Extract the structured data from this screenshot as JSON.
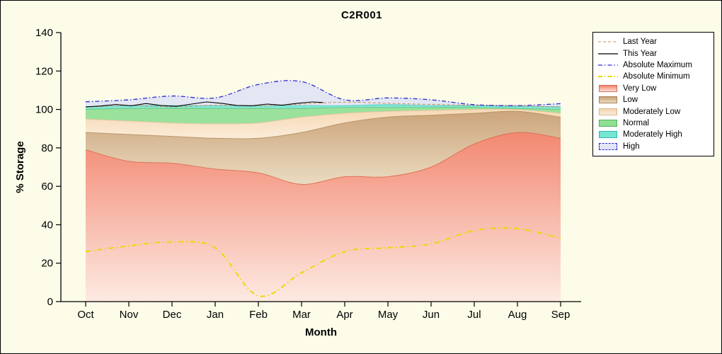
{
  "title": "C2R001",
  "axes": {
    "x_label": "Month",
    "y_label": "% Storage",
    "y_ticks": [
      0,
      20,
      40,
      60,
      80,
      100,
      120,
      140
    ],
    "x_ticks": [
      "Oct",
      "Nov",
      "Dec",
      "Jan",
      "Feb",
      "Mar",
      "Apr",
      "May",
      "Jun",
      "Jul",
      "Aug",
      "Sep"
    ]
  },
  "legend": {
    "items": [
      {
        "label": "Last Year",
        "swatch": "line",
        "color": "#CF8B55",
        "dash": "4 3",
        "width": 1
      },
      {
        "label": "This Year",
        "swatch": "line",
        "color": "#000000",
        "dash": "",
        "width": 1.2
      },
      {
        "label": "Absolute Maximum",
        "swatch": "line",
        "color": "#2B2BD5",
        "dash": "6 3 1.5 3",
        "width": 1.3
      },
      {
        "label": "Absolute Minimum",
        "swatch": "line",
        "color": "#EDD800",
        "dash": "6 3 1.5 3",
        "width": 2
      },
      {
        "label": "Very Low",
        "swatch": "area",
        "fill_top": "#F2826B",
        "fill_bottom": "#FCE3DA",
        "border": "#D96B52"
      },
      {
        "label": "Low",
        "swatch": "area",
        "fill_top": "#C9A075",
        "fill_bottom": "#EADABF",
        "border": "#A8825A"
      },
      {
        "label": "Moderately Low",
        "swatch": "area",
        "fill_top": "#F6D6B2",
        "fill_bottom": "#FBEBD8",
        "border": "#D9B98F"
      },
      {
        "label": "Normal",
        "swatch": "area",
        "fill_top": "#8FDF92",
        "fill_bottom": "#8FDF92",
        "border": "#4FAE5C"
      },
      {
        "label": "Moderately High",
        "swatch": "area",
        "fill_top": "#74E6D2",
        "fill_bottom": "#74E6D2",
        "border": "#2FB9AC"
      },
      {
        "label": "High",
        "swatch": "area",
        "fill_top": "#E2E5F6",
        "fill_bottom": "#E2E5F6",
        "border": "#2B2BD5",
        "border_dash": true
      }
    ]
  },
  "chart_data": {
    "type": "area",
    "title": "C2R001",
    "xlabel": "Month",
    "ylabel": "% Storage",
    "ylim": [
      0,
      140
    ],
    "legend_position": "right",
    "background": "#FCFCE8",
    "categories": [
      "Oct",
      "Nov",
      "Dec",
      "Jan",
      "Feb",
      "Mar",
      "Apr",
      "May",
      "Jun",
      "Jul",
      "Aug",
      "Sep"
    ],
    "bands": {
      "very_low_top": [
        79,
        73,
        72,
        69,
        67,
        61,
        65,
        65,
        70,
        82,
        88,
        85
      ],
      "low_top": [
        88,
        87,
        86,
        85,
        85,
        88,
        93,
        96,
        97,
        98,
        99,
        96
      ],
      "moderately_low_top": [
        95,
        94,
        93,
        92.5,
        93,
        96,
        98,
        99,
        99.5,
        100,
        100,
        98
      ],
      "normal_top": [
        100,
        100.5,
        100.5,
        100.5,
        100.5,
        100.5,
        101,
        101,
        101,
        101,
        100.5,
        100
      ],
      "moderately_high_top": [
        101.5,
        102,
        102,
        102,
        102,
        102,
        102,
        102.5,
        102,
        102,
        101.5,
        101.5
      ]
    },
    "series": {
      "absolute_maximum": [
        104,
        105,
        107,
        106,
        113,
        114.5,
        105,
        106,
        105,
        102.5,
        102,
        103
      ],
      "absolute_minimum": [
        26,
        29,
        31,
        28,
        3,
        15,
        26,
        28,
        30,
        37,
        38,
        33
      ],
      "last_year": [
        101.2,
        102,
        101.4,
        102.2,
        101.8,
        102.8,
        103.8,
        103.2,
        102.6,
        102.2,
        102,
        101.2
      ],
      "this_year": {
        "x": [
          0,
          0.35,
          0.7,
          1.05,
          1.4,
          1.75,
          2.1,
          2.45,
          2.8,
          3.15,
          3.5,
          3.85,
          4.2,
          4.55,
          4.9,
          5.25,
          5.5
        ],
        "values": [
          101.3,
          101.8,
          102.6,
          101.9,
          103.1,
          102,
          101.6,
          102.8,
          103.9,
          103.2,
          102.1,
          101.9,
          102.8,
          102.2,
          103.2,
          103.9,
          103.6
        ]
      }
    },
    "colors": {
      "very_low": "#F2826B",
      "low": "#C9A075",
      "moderately_low": "#F6D6B2",
      "normal": "#8FDF92",
      "moderately_high": "#74E6D2",
      "high": "#DEE2F5",
      "absolute_maximum_line": "#2B2BD5",
      "absolute_minimum_line": "#EDD800",
      "last_year_line": "#CF8B55",
      "this_year_line": "#000000"
    }
  }
}
